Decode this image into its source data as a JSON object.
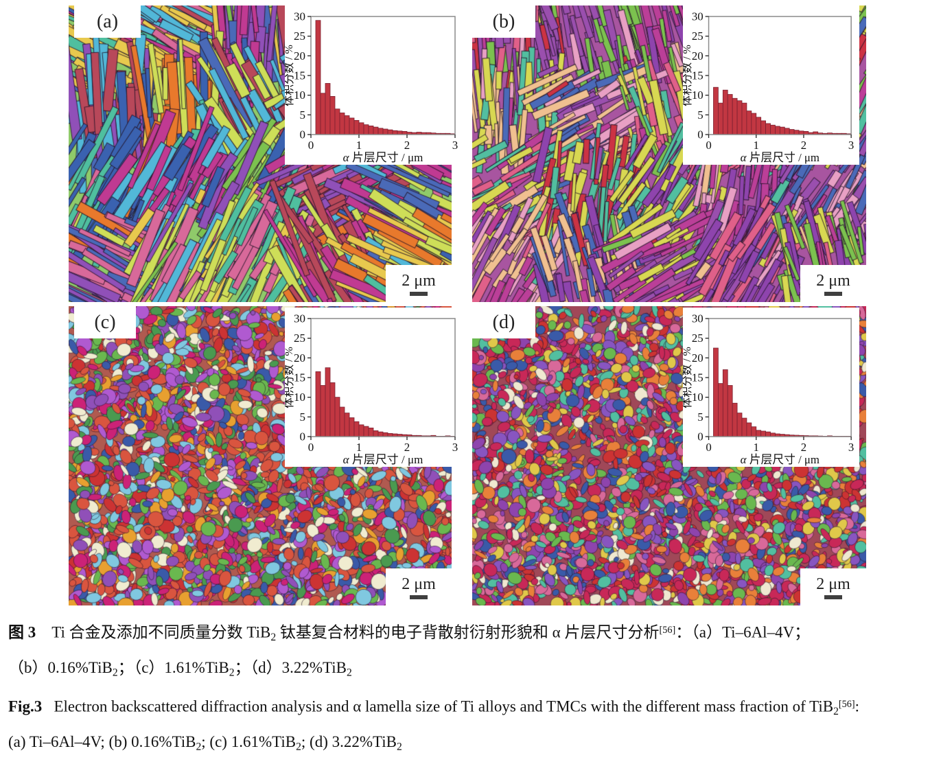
{
  "figure": {
    "panels": [
      {
        "id": "a",
        "label": "(a)",
        "scale_bar": "2 μm",
        "texture": {
          "type": "lath",
          "seed": 11,
          "background": "#8fca6a",
          "palette": [
            "#4a6ab8",
            "#e8792c",
            "#7cc24f",
            "#cede58",
            "#c03a92",
            "#9050b8",
            "#4fbf9f",
            "#e8c94e",
            "#d8699a",
            "#52b8d8",
            "#b8485a",
            "#3a62b0"
          ],
          "count": 980,
          "len": [
            36,
            150
          ],
          "width": [
            5,
            15
          ],
          "angles": [
            -62,
            -30,
            28,
            62,
            88
          ]
        }
      },
      {
        "id": "b",
        "label": "(b)",
        "scale_bar": "2 μm",
        "texture": {
          "type": "lath",
          "seed": 29,
          "background": "#a855a0",
          "palette": [
            "#bb3f98",
            "#9a4fae",
            "#7cc24f",
            "#e06089",
            "#52bfa0",
            "#4a6ab8",
            "#d8d852",
            "#e8a0c4",
            "#f0c090",
            "#cc3344",
            "#bb3f98",
            "#8e44ad"
          ],
          "count": 1200,
          "len": [
            22,
            96
          ],
          "width": [
            4,
            12
          ],
          "angles": [
            -80,
            90,
            75,
            -60,
            -28
          ]
        }
      },
      {
        "id": "c",
        "label": "(c)",
        "scale_bar": "2 μm",
        "texture": {
          "type": "fine",
          "seed": 23,
          "background": "#b05a50",
          "palette": [
            "#d9553f",
            "#6ab84f",
            "#3a5aa8",
            "#cc2277",
            "#f0ecd0",
            "#80c8e0",
            "#b05ad0",
            "#e8a030",
            "#cc3333",
            "#4a9a50",
            "#9050b8",
            "#d9553f"
          ],
          "count": 3300,
          "radius": [
            3,
            12
          ]
        }
      },
      {
        "id": "d",
        "label": "(d)",
        "scale_bar": "2 μm",
        "texture": {
          "type": "fine",
          "seed": 37,
          "background": "#a04858",
          "palette": [
            "#c82858",
            "#3a5aa8",
            "#6ab84f",
            "#8e44ad",
            "#e0c84a",
            "#e8803a",
            "#efe8d0",
            "#52bfa0",
            "#cc3333",
            "#d8699a",
            "#8855c0",
            "#c82858"
          ],
          "count": 3400,
          "radius": [
            3,
            11
          ]
        }
      }
    ],
    "captions": {
      "zh_line1": [
        {
          "t": "图 3",
          "b": true
        },
        {
          "t": "　Ti 合金及添加不同质量分数 TiB"
        },
        {
          "t": "2",
          "sub": true
        },
        {
          "t": " 钛基复合材料的电子背散射衍射形貌和 α 片层尺寸分析"
        },
        {
          "t": "[56]",
          "sup": true
        },
        {
          "t": "：（a）Ti–6Al–4V；"
        }
      ],
      "zh_line2": [
        {
          "t": "（b）0.16%TiB"
        },
        {
          "t": "2",
          "sub": true
        },
        {
          "t": "；（c）1.61%TiB"
        },
        {
          "t": "2",
          "sub": true
        },
        {
          "t": "；（d）3.22%TiB"
        },
        {
          "t": "2",
          "sub": true
        }
      ],
      "en_line1": [
        {
          "t": "Fig.3",
          "b": true
        },
        {
          "t": "   Electron backscattered diffraction analysis and α lamella size of Ti alloys and TMCs with the different mass fraction of TiB"
        },
        {
          "t": "2",
          "sub": true
        },
        {
          "t": "[56]",
          "sup": true
        },
        {
          "t": ":"
        }
      ],
      "en_line2": [
        {
          "t": "(a) Ti–6Al–4V; (b) 0.16%TiB"
        },
        {
          "t": "2",
          "sub": true
        },
        {
          "t": "; (c) 1.61%TiB"
        },
        {
          "t": "2",
          "sub": true
        },
        {
          "t": "; (d) 3.22%TiB"
        },
        {
          "t": "2",
          "sub": true
        }
      ]
    }
  },
  "chart_data": [
    {
      "type": "bar",
      "panel": "a",
      "title": "",
      "xlabel": "α 片层尺寸 / μm",
      "ylabel": "体积分数 / %",
      "xlim": [
        0,
        3
      ],
      "ylim": [
        0,
        30
      ],
      "xticks": [
        0,
        1,
        2,
        3
      ],
      "yticks": [
        0,
        5,
        10,
        15,
        20,
        25,
        30
      ],
      "bin_start": 0.1,
      "bin_width": 0.1,
      "values": [
        29,
        10.5,
        13,
        9.7,
        6.5,
        5.5,
        4.8,
        4.2,
        3.6,
        3.0,
        2.5,
        2.2,
        1.9,
        1.6,
        1.4,
        1.2,
        1.0,
        0.9,
        0.8,
        0.6,
        0.5,
        0.6,
        0.5,
        0.5,
        0.4,
        0.3,
        0.3,
        0.3,
        0.2
      ],
      "bar_color": "#c23742",
      "bar_edge": "#7a2030",
      "frame_color": "#8a8a8a",
      "grid": false,
      "legend": "none"
    },
    {
      "type": "bar",
      "panel": "b",
      "title": "",
      "xlabel": "α 片层尺寸 / μm",
      "ylabel": "体积分数 / %",
      "xlim": [
        0,
        3
      ],
      "ylim": [
        0,
        30
      ],
      "xticks": [
        0,
        1,
        2,
        3
      ],
      "yticks": [
        0,
        5,
        10,
        15,
        20,
        25,
        30
      ],
      "bin_start": 0.1,
      "bin_width": 0.1,
      "values": [
        12,
        8,
        11.3,
        10.2,
        9.2,
        8.6,
        8.0,
        6.0,
        5.4,
        4.4,
        3.5,
        2.8,
        2.4,
        2.1,
        1.9,
        1.6,
        1.3,
        1.1,
        0.9,
        0.8,
        0.5,
        0.7,
        0.4,
        0.3,
        0.4,
        0.3,
        0.3,
        0.3,
        0.2
      ],
      "bar_color": "#c23742",
      "bar_edge": "#7a2030",
      "frame_color": "#8a8a8a",
      "grid": false,
      "legend": "none"
    },
    {
      "type": "bar",
      "panel": "c",
      "title": "",
      "xlabel": "α 片层尺寸 / μm",
      "ylabel": "体积分数 / %",
      "xlim": [
        0,
        3
      ],
      "ylim": [
        0,
        30
      ],
      "xticks": [
        0,
        1,
        2,
        3
      ],
      "yticks": [
        0,
        5,
        10,
        15,
        20,
        25,
        30
      ],
      "bin_start": 0.1,
      "bin_width": 0.1,
      "values": [
        16.5,
        13,
        17.5,
        13.7,
        10,
        7.5,
        6,
        4.8,
        3.8,
        3.0,
        2.6,
        2.2,
        1.5,
        1.2,
        1.0,
        0.8,
        0.7,
        0.6,
        0.5,
        0.45,
        0.3,
        0.3,
        0.2,
        0.2,
        0.3,
        0.1,
        0.1,
        0.2,
        0.1
      ],
      "bar_color": "#c23742",
      "bar_edge": "#7a2030",
      "frame_color": "#8a8a8a",
      "grid": false,
      "legend": "none"
    },
    {
      "type": "bar",
      "panel": "d",
      "title": "",
      "xlabel": "α 片层尺寸 / μm",
      "ylabel": "体积分数 / %",
      "xlim": [
        0,
        3
      ],
      "ylim": [
        0,
        30
      ],
      "xticks": [
        0,
        1,
        2,
        3
      ],
      "yticks": [
        0,
        5,
        10,
        15,
        20,
        25,
        30
      ],
      "bin_start": 0.1,
      "bin_width": 0.1,
      "values": [
        22.5,
        13.5,
        17,
        13,
        8.5,
        6,
        4.7,
        3.5,
        2.5,
        1.6,
        1.4,
        1.2,
        0.9,
        0.7,
        0.6,
        0.5,
        0.4,
        0.35,
        0.3,
        0.25,
        0.2,
        0.2,
        0.15,
        0.1,
        0.2,
        0.1,
        0.1,
        0.1,
        0.1
      ],
      "bar_color": "#c23742",
      "bar_edge": "#7a2030",
      "frame_color": "#8a8a8a",
      "grid": false,
      "legend": "none"
    }
  ]
}
